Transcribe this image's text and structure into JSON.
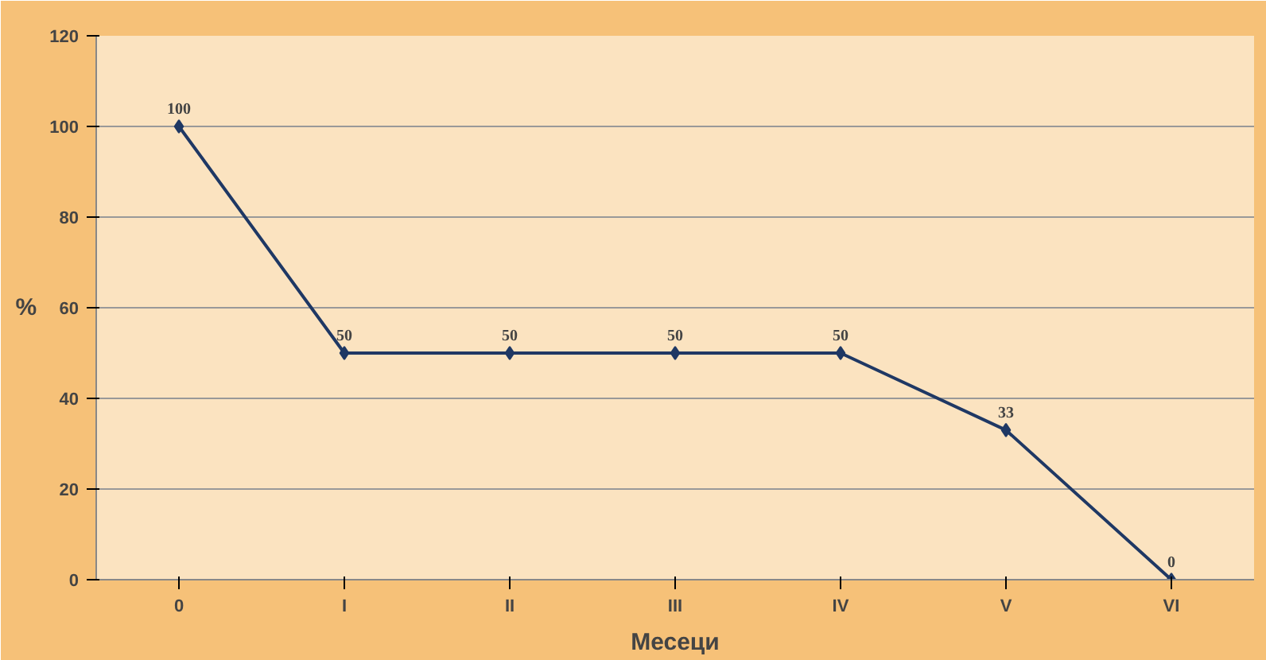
{
  "chart_data": {
    "type": "line",
    "xlabel": "Месеци",
    "ylabel": "%",
    "categories": [
      "0",
      "I",
      "II",
      "III",
      "IV",
      "V",
      "VI"
    ],
    "values": [
      100,
      50,
      50,
      50,
      50,
      33,
      0
    ],
    "color": "#1f3864",
    "marker": "diamond",
    "line_style": "solid",
    "ylim": [
      0,
      120
    ],
    "yticks": [
      0,
      20,
      40,
      60,
      80,
      100,
      120
    ],
    "grid": "y",
    "data_labels": true,
    "legend": false
  }
}
